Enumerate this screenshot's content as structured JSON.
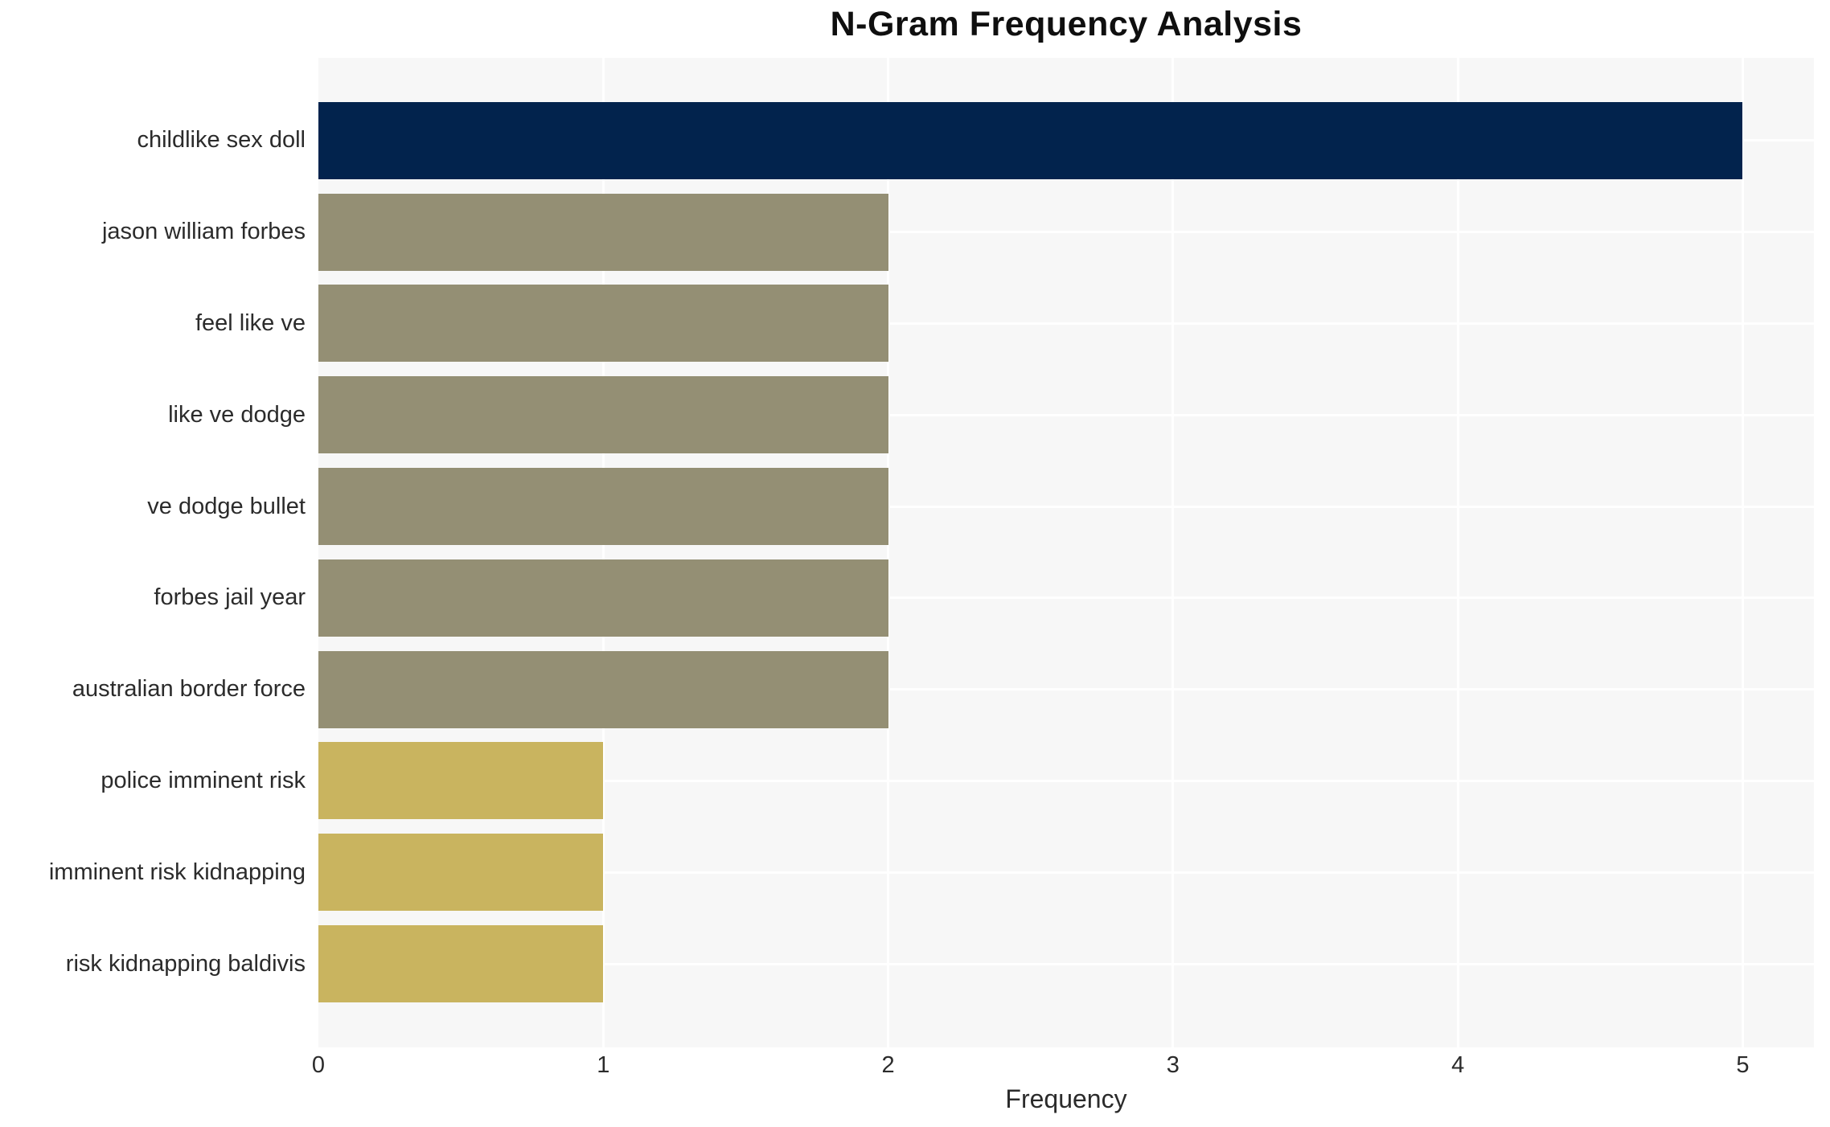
{
  "chart_data": {
    "type": "bar",
    "orientation": "horizontal",
    "title": "N-Gram Frequency Analysis",
    "xlabel": "Frequency",
    "categories": [
      "childlike sex doll",
      "jason william forbes",
      "feel like ve",
      "like ve dodge",
      "ve dodge bullet",
      "forbes jail year",
      "australian border force",
      "police imminent risk",
      "imminent risk kidnapping",
      "risk kidnapping baldivis"
    ],
    "values": [
      5,
      2,
      2,
      2,
      2,
      2,
      2,
      1,
      1,
      1
    ],
    "bar_colors": [
      "#02234d",
      "#948f74",
      "#948f74",
      "#948f74",
      "#948f74",
      "#948f74",
      "#948f74",
      "#c9b45f",
      "#c9b45f",
      "#c9b45f"
    ],
    "xticks": [
      "0",
      "1",
      "2",
      "3",
      "4",
      "5"
    ],
    "xlim": [
      0,
      5.25
    ],
    "grid": true,
    "legend": "none",
    "colors": {
      "plot_background": "#f7f7f7",
      "page_background": "#ffffff",
      "gridline": "#ffffff",
      "text": "#2b2b2b",
      "title_text": "#0f0f0f"
    }
  }
}
